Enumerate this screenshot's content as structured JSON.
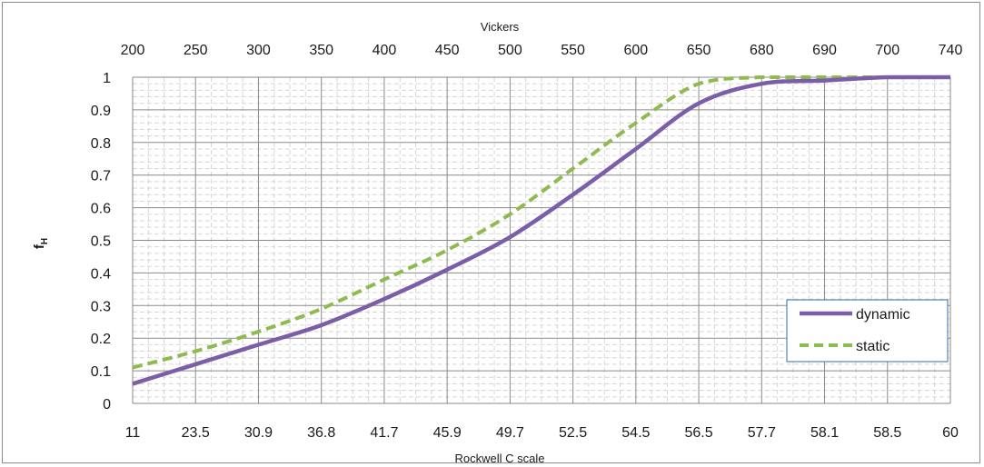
{
  "chart_data": {
    "type": "line",
    "ylabel": "f",
    "ylabel_subscript": "H",
    "xlabel_bottom": "Rockwell C scale",
    "xlabel_top": "Vickers",
    "x_bottom_ticks": [
      "11",
      "23.5",
      "30.9",
      "36.8",
      "41.7",
      "45.9",
      "49.7",
      "52.5",
      "54.5",
      "56.5",
      "57.7",
      "58.1",
      "58.5",
      "60"
    ],
    "x_top_ticks": [
      "200",
      "250",
      "300",
      "350",
      "400",
      "450",
      "500",
      "550",
      "600",
      "650",
      "680",
      "690",
      "700",
      "740"
    ],
    "y_ticks": [
      "0",
      "0.1",
      "0.2",
      "0.3",
      "0.4",
      "0.5",
      "0.6",
      "0.7",
      "0.8",
      "0.9",
      "1"
    ],
    "ylim": [
      0,
      1
    ],
    "grid": true,
    "legend_position": "bottom-right",
    "series": [
      {
        "name": "dynamic",
        "color": "#7b5ea7",
        "style": "solid",
        "x_index": [
          0,
          1,
          2,
          3,
          4,
          5,
          6,
          7,
          8,
          9,
          10,
          11,
          12,
          13
        ],
        "values": [
          0.06,
          0.12,
          0.18,
          0.24,
          0.32,
          0.41,
          0.51,
          0.64,
          0.78,
          0.92,
          0.98,
          0.99,
          1.0,
          1.0
        ]
      },
      {
        "name": "static",
        "color": "#8fba4f",
        "style": "dashed",
        "x_index": [
          0,
          1,
          2,
          3,
          4,
          5,
          6,
          7,
          8,
          9,
          10,
          11,
          12,
          13
        ],
        "values": [
          0.11,
          0.16,
          0.22,
          0.29,
          0.38,
          0.47,
          0.58,
          0.72,
          0.86,
          0.98,
          1.0,
          1.0,
          1.0,
          1.0
        ]
      }
    ]
  }
}
